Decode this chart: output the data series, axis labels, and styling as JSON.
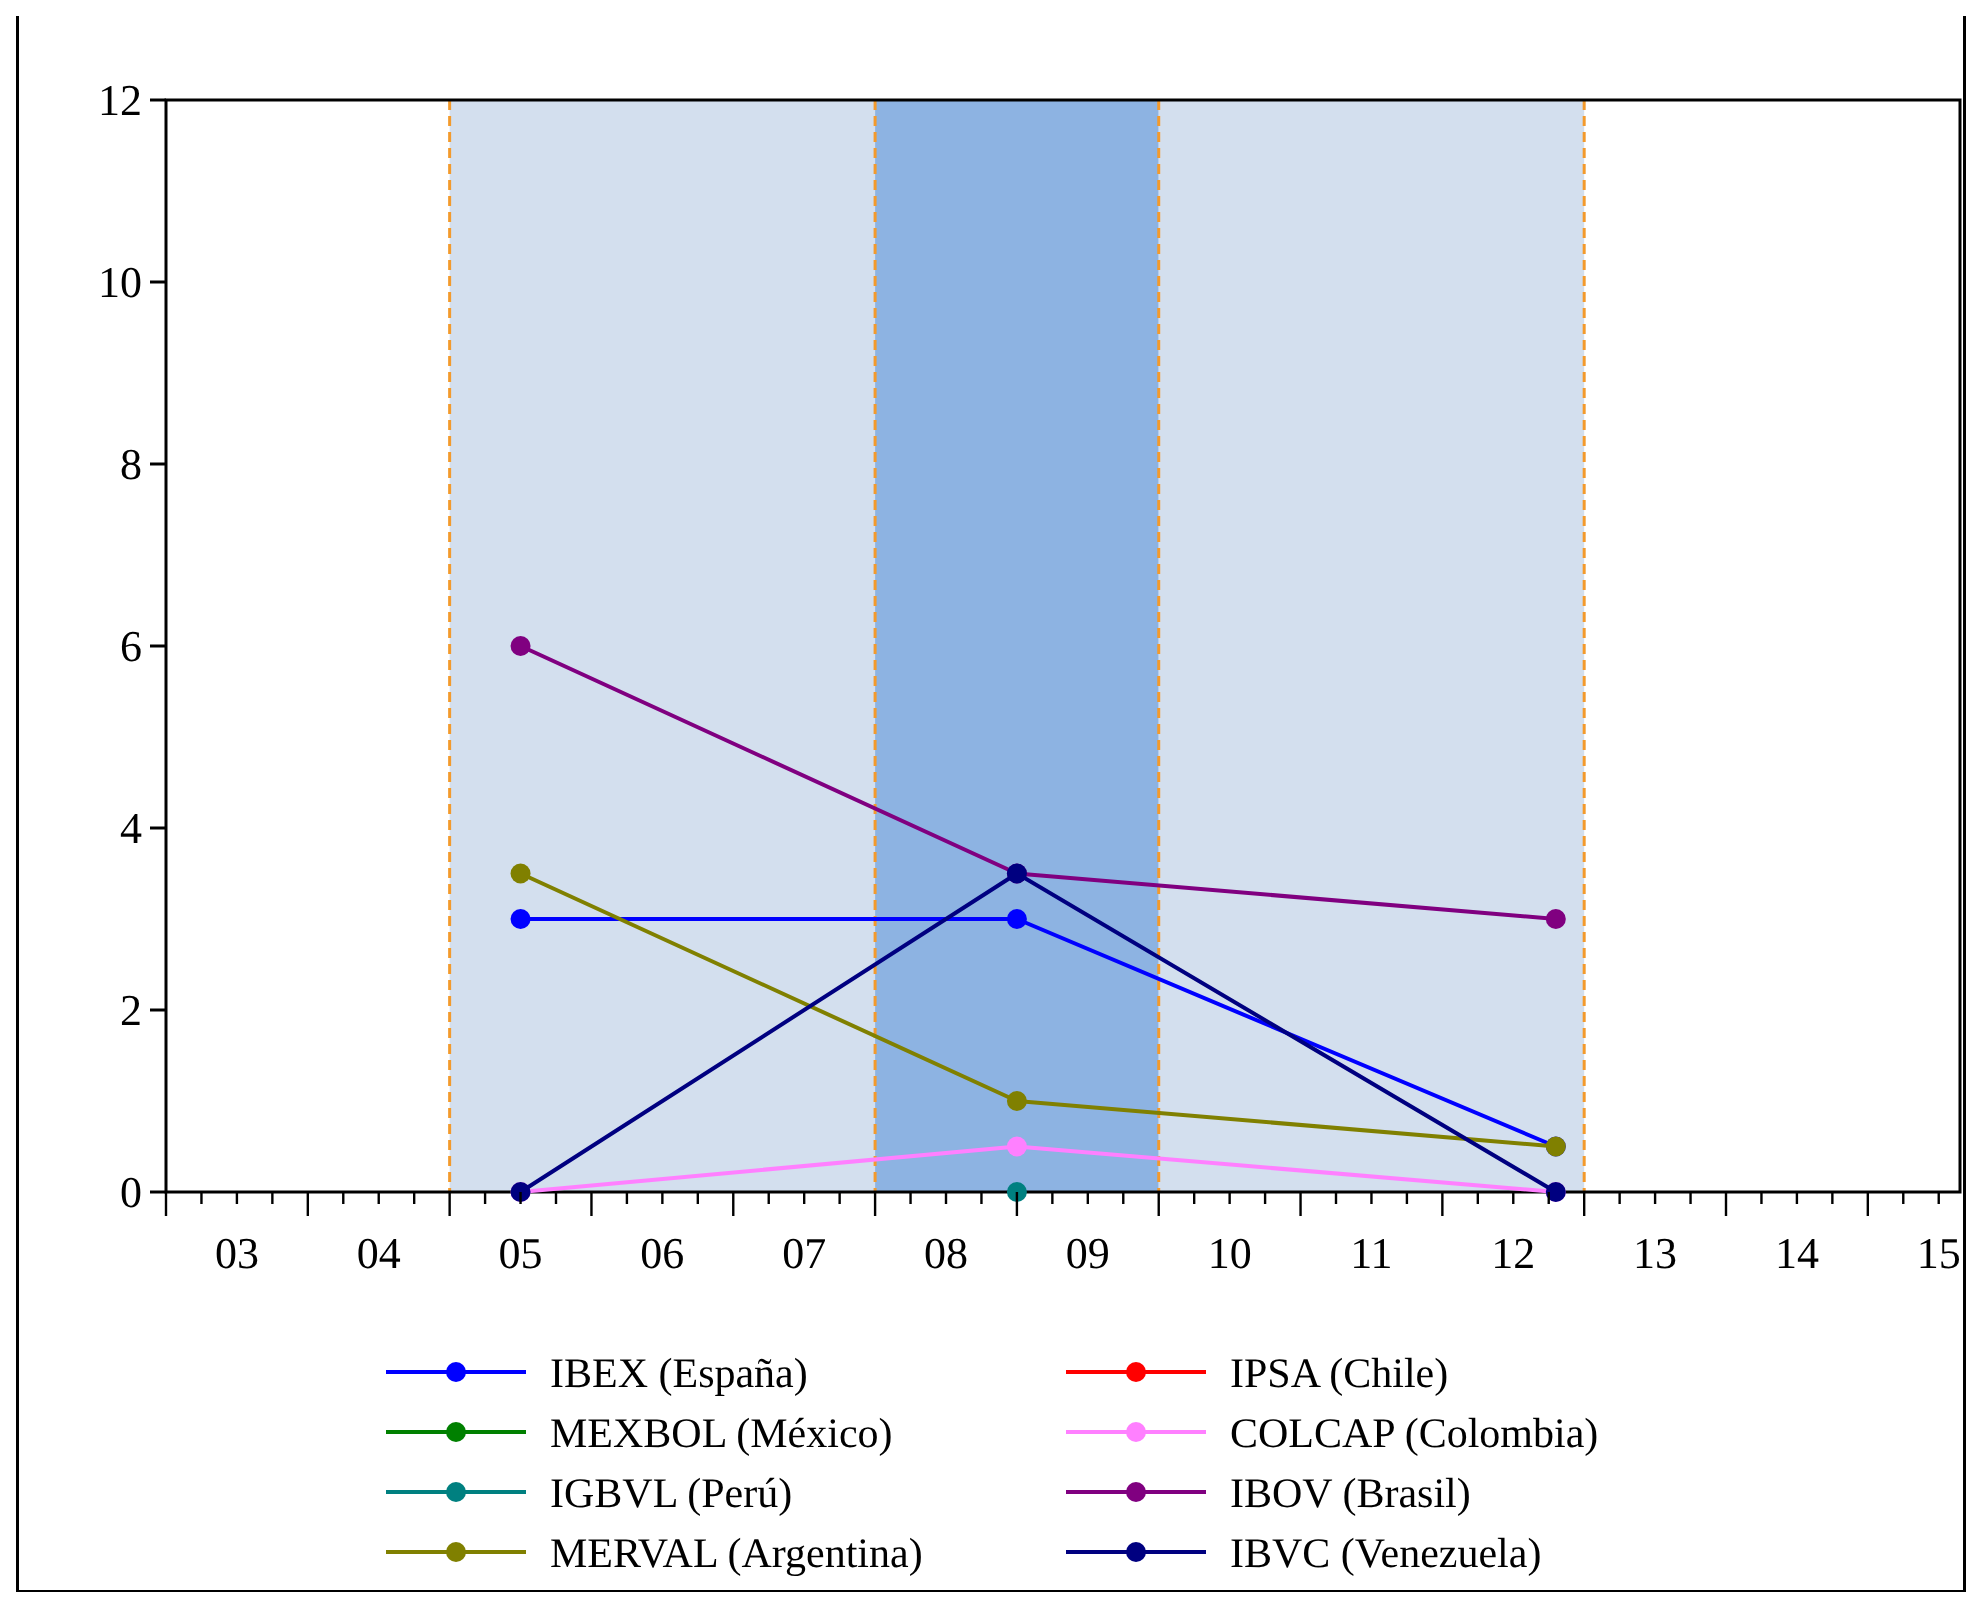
{
  "chart_data": {
    "type": "line",
    "x": [
      5,
      8.5,
      12.3
    ],
    "xlim": [
      2.5,
      15.15
    ],
    "ylim": [
      0,
      12
    ],
    "yticks": [
      0,
      2,
      4,
      6,
      8,
      10,
      12
    ],
    "xticks": [
      {
        "value": 2.5,
        "label": null
      },
      {
        "value": 2.75,
        "label": null
      },
      {
        "value": 3,
        "label": "03"
      },
      {
        "value": 3.25,
        "label": null
      },
      {
        "value": 3.5,
        "label": null
      },
      {
        "value": 3.75,
        "label": null
      },
      {
        "value": 4,
        "label": "04"
      },
      {
        "value": 4.25,
        "label": null
      },
      {
        "value": 4.5,
        "label": null
      },
      {
        "value": 4.75,
        "label": null
      },
      {
        "value": 5,
        "label": "05"
      },
      {
        "value": 5.25,
        "label": null
      },
      {
        "value": 5.5,
        "label": null
      },
      {
        "value": 5.75,
        "label": null
      },
      {
        "value": 6,
        "label": "06"
      },
      {
        "value": 6.25,
        "label": null
      },
      {
        "value": 6.5,
        "label": null
      },
      {
        "value": 6.75,
        "label": null
      },
      {
        "value": 7,
        "label": "07"
      },
      {
        "value": 7.25,
        "label": null
      },
      {
        "value": 7.5,
        "label": null
      },
      {
        "value": 7.75,
        "label": null
      },
      {
        "value": 8,
        "label": "08"
      },
      {
        "value": 8.25,
        "label": null
      },
      {
        "value": 8.5,
        "label": null
      },
      {
        "value": 8.75,
        "label": null
      },
      {
        "value": 9,
        "label": "09"
      },
      {
        "value": 9.25,
        "label": null
      },
      {
        "value": 9.5,
        "label": null
      },
      {
        "value": 9.75,
        "label": null
      },
      {
        "value": 10,
        "label": "10"
      },
      {
        "value": 10.25,
        "label": null
      },
      {
        "value": 10.5,
        "label": null
      },
      {
        "value": 10.75,
        "label": null
      },
      {
        "value": 11,
        "label": "11"
      },
      {
        "value": 11.25,
        "label": null
      },
      {
        "value": 11.5,
        "label": null
      },
      {
        "value": 11.75,
        "label": null
      },
      {
        "value": 12,
        "label": "12"
      },
      {
        "value": 12.25,
        "label": null
      },
      {
        "value": 12.5,
        "label": null
      },
      {
        "value": 12.75,
        "label": null
      },
      {
        "value": 13,
        "label": "13"
      },
      {
        "value": 13.25,
        "label": null
      },
      {
        "value": 13.5,
        "label": null
      },
      {
        "value": 13.75,
        "label": null
      },
      {
        "value": 14,
        "label": "14"
      },
      {
        "value": 14.25,
        "label": null
      },
      {
        "value": 14.5,
        "label": null
      },
      {
        "value": 14.75,
        "label": null
      },
      {
        "value": 15,
        "label": "15"
      }
    ],
    "bands": [
      {
        "axis": "x",
        "from": 4.5,
        "to": 7.5,
        "color": "#d3dfee"
      },
      {
        "axis": "x",
        "from": 7.5,
        "to": 9.5,
        "color": "#8db3e2"
      },
      {
        "axis": "x",
        "from": 9.5,
        "to": 12.5,
        "color": "#d3dfee"
      }
    ],
    "ref_lines": [
      {
        "axis": "x",
        "value": 4.5,
        "color": "#f39a2c",
        "line_style": "dashed"
      },
      {
        "axis": "x",
        "value": 7.5,
        "color": "#f39a2c",
        "line_style": "dashed"
      },
      {
        "axis": "x",
        "value": 9.5,
        "color": "#f39a2c",
        "line_style": "dashed"
      },
      {
        "axis": "x",
        "value": 12.5,
        "color": "#f39a2c",
        "line_style": "dashed"
      }
    ],
    "series": [
      {
        "name": "IBEX (España)",
        "color": "#0000ff",
        "values": [
          3,
          3,
          0.5
        ]
      },
      {
        "name": "IPSA (Chile)",
        "color": "#ff0000",
        "values": [
          null,
          null,
          null
        ]
      },
      {
        "name": "MEXBOL (México)",
        "color": "#008000",
        "values": [
          null,
          null,
          null
        ]
      },
      {
        "name": "COLCAP (Colombia)",
        "color": "#ff80ff",
        "values": [
          0,
          0.5,
          0
        ]
      },
      {
        "name": "IGBVL (Perú)",
        "color": "#008080",
        "values": [
          null,
          0,
          null
        ]
      },
      {
        "name": "IBOV (Brasil)",
        "color": "#800080",
        "values": [
          6,
          3.5,
          3
        ]
      },
      {
        "name": "MERVAL (Argentina)",
        "color": "#808000",
        "values": [
          3.5,
          1,
          0.5
        ]
      },
      {
        "name": "IBVC (Venezuela)",
        "color": "#000080",
        "values": [
          0,
          3.5,
          0
        ]
      }
    ],
    "marker": "circle",
    "line_style": "solid",
    "legend": "bottom",
    "grid": false
  }
}
